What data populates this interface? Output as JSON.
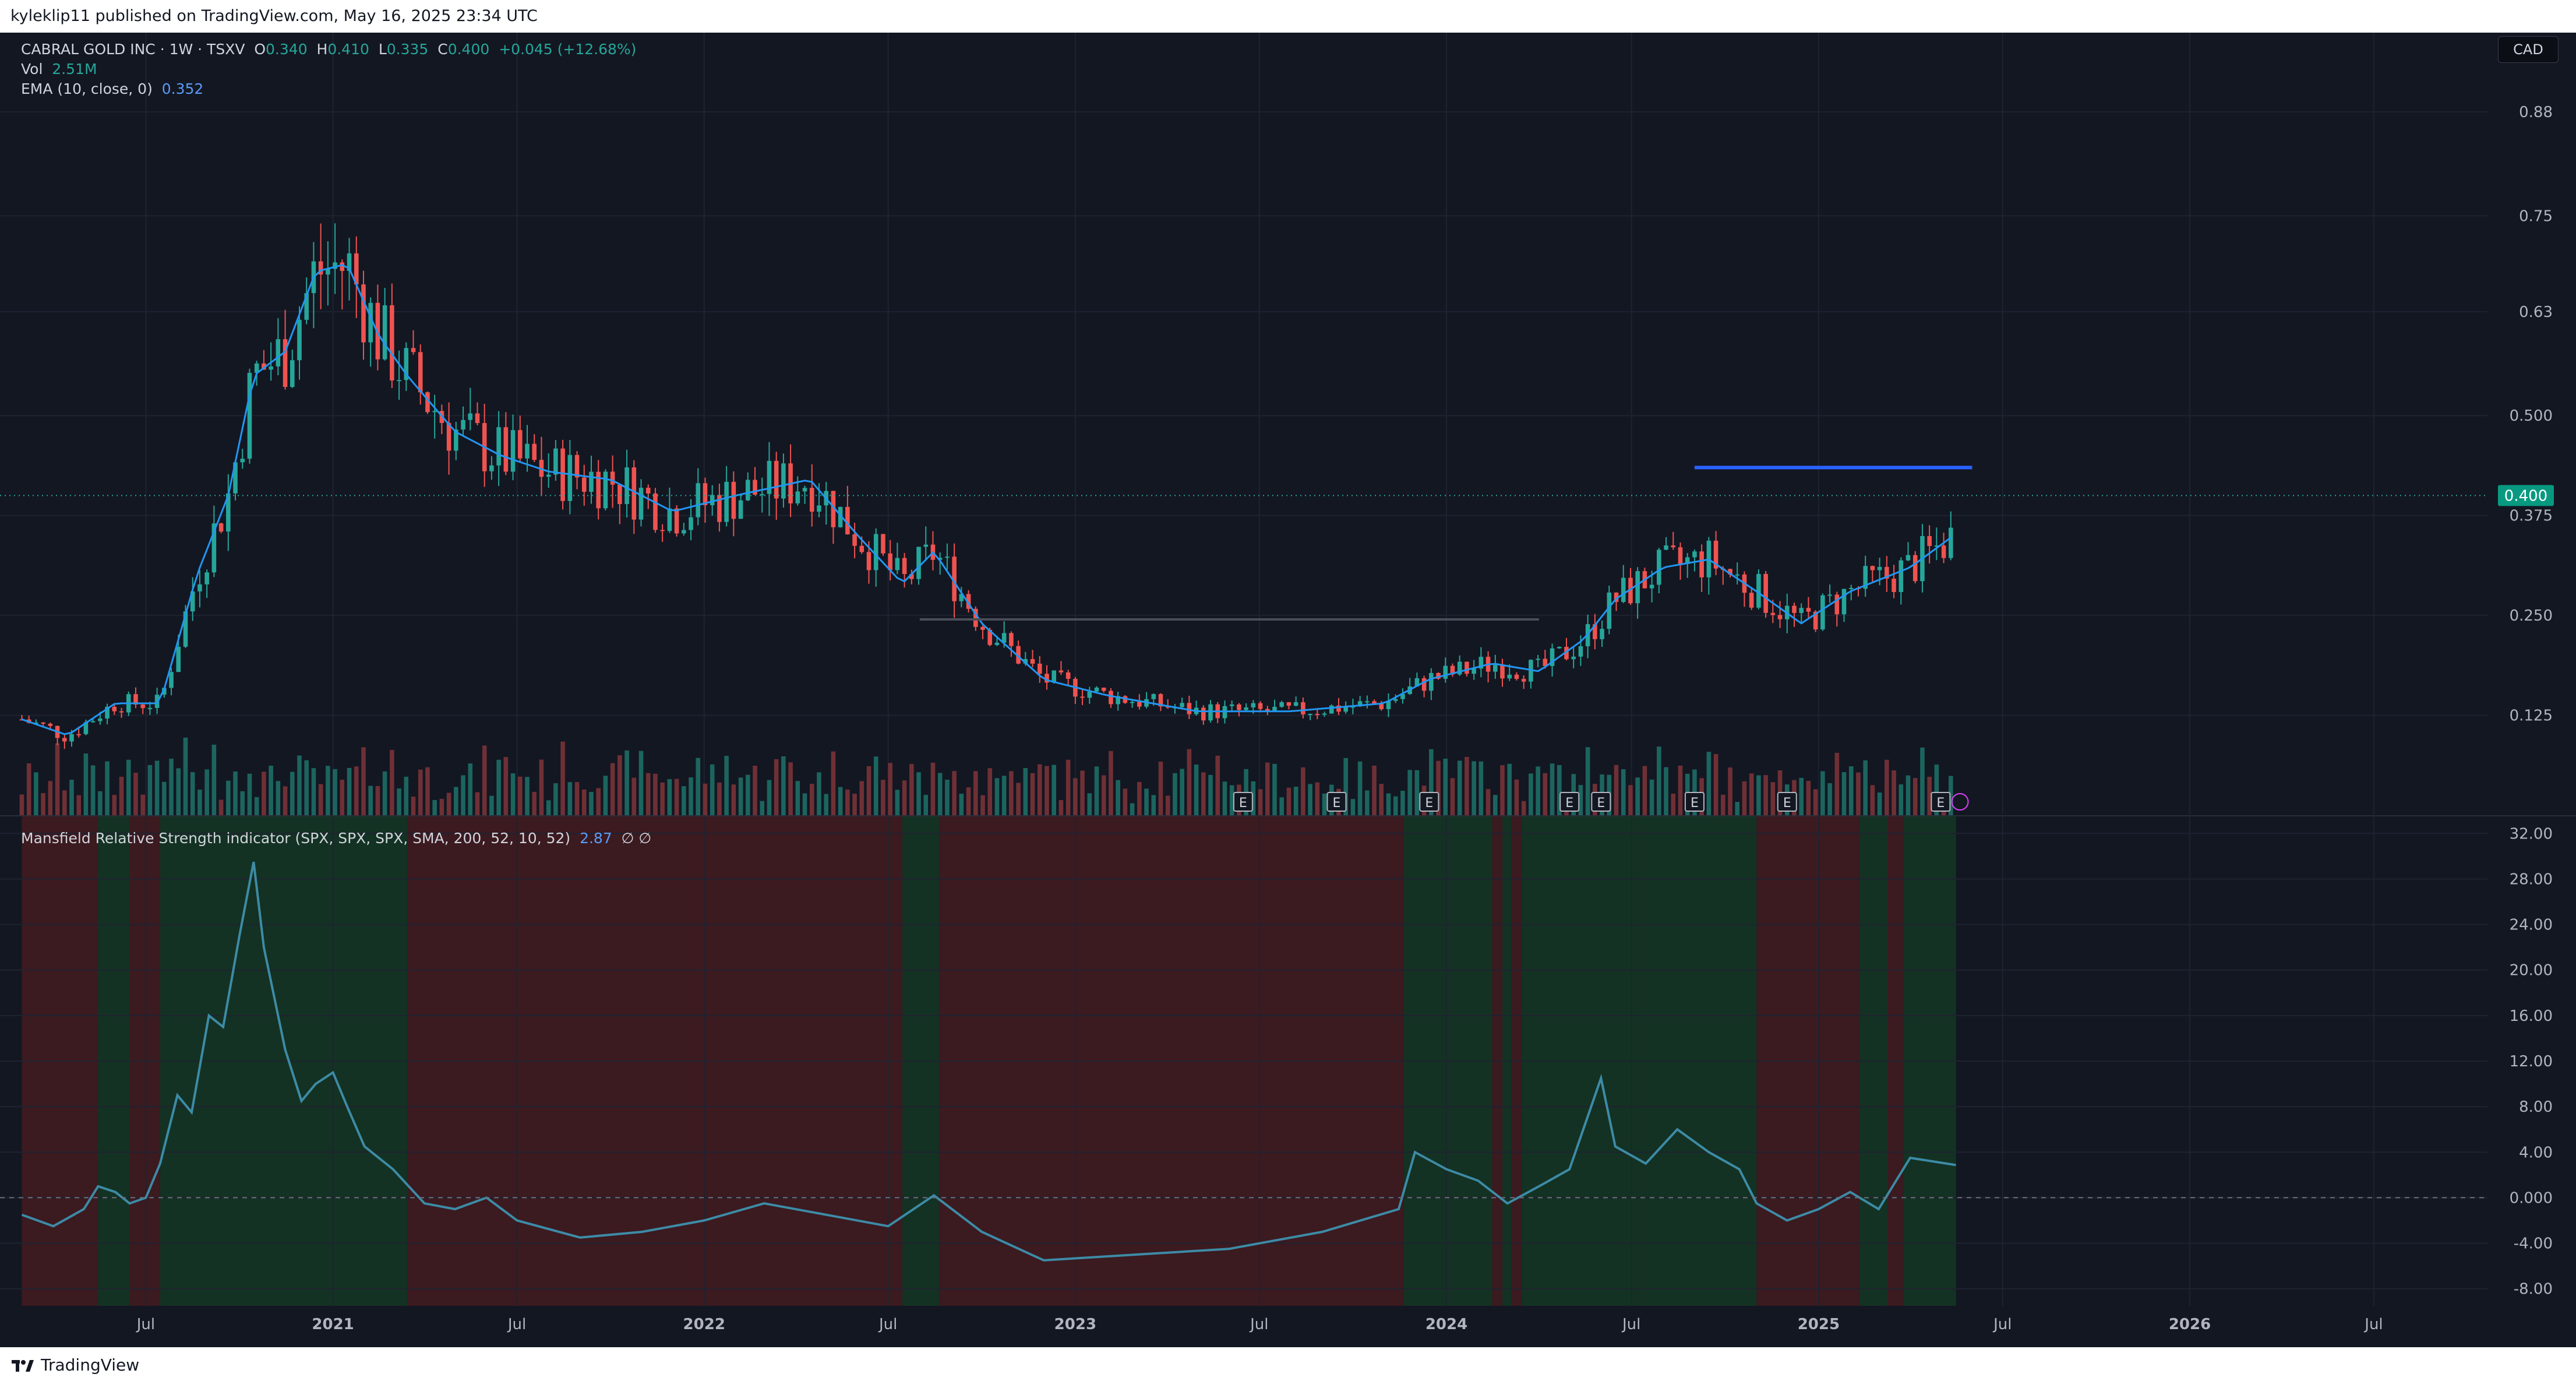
{
  "header": {
    "published_text": "kyleklip11 published on TradingView.com, May 16, 2025 23:34 UTC"
  },
  "legend": {
    "symbol_line": "CABRAL GOLD INC · 1W · TSXV",
    "o_label": "O",
    "o_value": "0.340",
    "h_label": "H",
    "h_value": "0.410",
    "l_label": "L",
    "l_value": "0.335",
    "c_label": "C",
    "c_value": "0.400",
    "change": "+0.045 (+12.68%)",
    "vol_label": "Vol",
    "vol_value": "2.51M",
    "ema_label": "EMA (10, close, 0)",
    "ema_value": "0.352"
  },
  "currency_button": "CAD",
  "indicator": {
    "label": "Mansfield Relative Strength indicator (SPX, SPX, SPX, SMA, 200, 52, 10, 52)",
    "value": "2.87",
    "extra": "∅ ∅"
  },
  "footer": {
    "brand": "TradingView"
  },
  "colors": {
    "background": "#131722",
    "grid": "#1f2331",
    "up": "#26a69a",
    "down": "#ef5350",
    "ema": "#2196f3",
    "rs_line": "#3d8ba6",
    "green_zone": "#133223",
    "red_zone": "#3b1a20",
    "resistance": "#2962ff"
  },
  "chart_data": [
    {
      "type": "candlestick",
      "title": "CABRAL GOLD INC · 1W · TSXV",
      "interval": "1W",
      "y_axis": {
        "position": "right",
        "ticks": [
          "0.88",
          "0.75",
          "0.63",
          "0.500",
          "0.375",
          "0.250",
          "0.125"
        ],
        "range": [
          0.0,
          0.95
        ]
      },
      "x_axis_labels": [
        "Jul",
        "2021",
        "Jul",
        "2022",
        "Jul",
        "2023",
        "Jul",
        "2024",
        "Jul",
        "2025",
        "Jul",
        "2026",
        "Jul"
      ],
      "last_price_label": "0.400",
      "earnings_markers": [
        "E",
        "E",
        "E",
        "E",
        "E",
        "E",
        "E",
        "E"
      ],
      "series": [
        {
          "name": "EMA (10, close, 0)",
          "note": "price path approximated by keypoints (date, close)",
          "keypoints": [
            [
              "2020-03-01",
              0.12
            ],
            [
              "2020-04-15",
              0.1
            ],
            [
              "2020-06-01",
              0.14
            ],
            [
              "2020-07-15",
              0.14
            ],
            [
              "2020-08-20",
              0.3
            ],
            [
              "2020-09-20",
              0.4
            ],
            [
              "2020-10-15",
              0.55
            ],
            [
              "2020-11-15",
              0.58
            ],
            [
              "2020-12-15",
              0.68
            ],
            [
              "2021-01-15",
              0.69
            ],
            [
              "2021-02-15",
              0.6
            ],
            [
              "2021-03-15",
              0.55
            ],
            [
              "2021-05-01",
              0.48
            ],
            [
              "2021-06-15",
              0.45
            ],
            [
              "2021-08-01",
              0.43
            ],
            [
              "2021-10-01",
              0.42
            ],
            [
              "2021-12-01",
              0.38
            ],
            [
              "2022-02-01",
              0.4
            ],
            [
              "2022-04-15",
              0.42
            ],
            [
              "2022-06-01",
              0.35
            ],
            [
              "2022-07-15",
              0.29
            ],
            [
              "2022-08-15",
              0.33
            ],
            [
              "2022-10-01",
              0.24
            ],
            [
              "2022-12-01",
              0.17
            ],
            [
              "2023-02-01",
              0.15
            ],
            [
              "2023-05-01",
              0.13
            ],
            [
              "2023-08-01",
              0.13
            ],
            [
              "2023-11-01",
              0.14
            ],
            [
              "2023-12-15",
              0.17
            ],
            [
              "2024-02-15",
              0.19
            ],
            [
              "2024-04-01",
              0.18
            ],
            [
              "2024-05-15",
              0.22
            ],
            [
              "2024-06-15",
              0.27
            ],
            [
              "2024-08-01",
              0.31
            ],
            [
              "2024-09-15",
              0.32
            ],
            [
              "2024-11-01",
              0.28
            ],
            [
              "2024-12-15",
              0.24
            ],
            [
              "2025-02-01",
              0.28
            ],
            [
              "2025-04-01",
              0.31
            ],
            [
              "2025-05-16",
              0.352
            ]
          ]
        }
      ],
      "resistance_line": {
        "from": "2024-09-01",
        "to": "2025-06-01",
        "value": 0.435
      },
      "support_line": {
        "from": "2022-08-01",
        "to": "2024-04-01",
        "value": 0.245
      }
    },
    {
      "type": "line",
      "title": "Mansfield Relative Strength indicator (SPX, SPX, SPX, SMA, 200, 52, 10, 52)",
      "y_axis": {
        "position": "right",
        "ticks": [
          "32.00",
          "28.00",
          "24.00",
          "20.00",
          "16.00",
          "12.00",
          "8.00",
          "4.00",
          "0.000",
          "-4.00",
          "-8.00"
        ],
        "range": [
          -9.5,
          33.5
        ]
      },
      "zero_line": 0,
      "series": [
        {
          "name": "Mansfield RS",
          "points": [
            [
              "2020-03-01",
              -1.5
            ],
            [
              "2020-04-01",
              -2.5
            ],
            [
              "2020-05-01",
              -1.0
            ],
            [
              "2020-05-15",
              1.0
            ],
            [
              "2020-06-01",
              0.5
            ],
            [
              "2020-06-15",
              -0.5
            ],
            [
              "2020-07-01",
              0.0
            ],
            [
              "2020-07-15",
              3.0
            ],
            [
              "2020-08-01",
              9.0
            ],
            [
              "2020-08-15",
              7.5
            ],
            [
              "2020-09-01",
              16.0
            ],
            [
              "2020-09-15",
              15.0
            ],
            [
              "2020-10-01",
              23.0
            ],
            [
              "2020-10-15",
              29.5
            ],
            [
              "2020-10-25",
              22.0
            ],
            [
              "2020-11-15",
              13.0
            ],
            [
              "2020-12-01",
              8.5
            ],
            [
              "2020-12-15",
              10.0
            ],
            [
              "2021-01-01",
              11.0
            ],
            [
              "2021-01-15",
              8.0
            ],
            [
              "2021-02-01",
              4.5
            ],
            [
              "2021-03-01",
              2.5
            ],
            [
              "2021-04-01",
              -0.5
            ],
            [
              "2021-05-01",
              -1.0
            ],
            [
              "2021-06-01",
              0.0
            ],
            [
              "2021-07-01",
              -2.0
            ],
            [
              "2021-09-01",
              -3.5
            ],
            [
              "2021-11-01",
              -3.0
            ],
            [
              "2022-01-01",
              -2.0
            ],
            [
              "2022-03-01",
              -0.5
            ],
            [
              "2022-05-01",
              -1.5
            ],
            [
              "2022-07-01",
              -2.5
            ],
            [
              "2022-08-15",
              0.2
            ],
            [
              "2022-10-01",
              -3.0
            ],
            [
              "2022-12-01",
              -5.5
            ],
            [
              "2023-03-01",
              -5.0
            ],
            [
              "2023-06-01",
              -4.5
            ],
            [
              "2023-09-01",
              -3.0
            ],
            [
              "2023-11-15",
              -1.0
            ],
            [
              "2023-12-01",
              4.0
            ],
            [
              "2024-01-01",
              2.5
            ],
            [
              "2024-02-01",
              1.5
            ],
            [
              "2024-03-01",
              -0.5
            ],
            [
              "2024-04-01",
              1.0
            ],
            [
              "2024-05-01",
              2.5
            ],
            [
              "2024-06-01",
              10.5
            ],
            [
              "2024-06-15",
              4.5
            ],
            [
              "2024-07-15",
              3.0
            ],
            [
              "2024-08-15",
              6.0
            ],
            [
              "2024-09-15",
              4.0
            ],
            [
              "2024-10-15",
              2.5
            ],
            [
              "2024-11-01",
              -0.5
            ],
            [
              "2024-12-01",
              -2.0
            ],
            [
              "2025-01-01",
              -1.0
            ],
            [
              "2025-02-01",
              0.5
            ],
            [
              "2025-03-01",
              -1.0
            ],
            [
              "2025-04-01",
              3.5
            ],
            [
              "2025-05-16",
              2.87
            ]
          ]
        }
      ],
      "zones": [
        [
          "2020-03-01",
          "2020-05-15",
          "red"
        ],
        [
          "2020-05-15",
          "2020-06-15",
          "green"
        ],
        [
          "2020-06-15",
          "2020-07-15",
          "red"
        ],
        [
          "2020-07-15",
          "2021-03-15",
          "green"
        ],
        [
          "2021-03-15",
          "2022-07-15",
          "red"
        ],
        [
          "2022-07-15",
          "2022-08-20",
          "green"
        ],
        [
          "2022-08-20",
          "2023-11-20",
          "red"
        ],
        [
          "2023-11-20",
          "2024-02-15",
          "green"
        ],
        [
          "2024-02-15",
          "2024-02-25",
          "red"
        ],
        [
          "2024-02-25",
          "2024-03-05",
          "green"
        ],
        [
          "2024-03-05",
          "2024-03-15",
          "red"
        ],
        [
          "2024-03-15",
          "2024-11-01",
          "green"
        ],
        [
          "2024-11-01",
          "2025-02-10",
          "red"
        ],
        [
          "2025-02-10",
          "2025-03-10",
          "green"
        ],
        [
          "2025-03-10",
          "2025-03-25",
          "red"
        ],
        [
          "2025-03-25",
          "2025-05-16",
          "green"
        ]
      ]
    }
  ]
}
